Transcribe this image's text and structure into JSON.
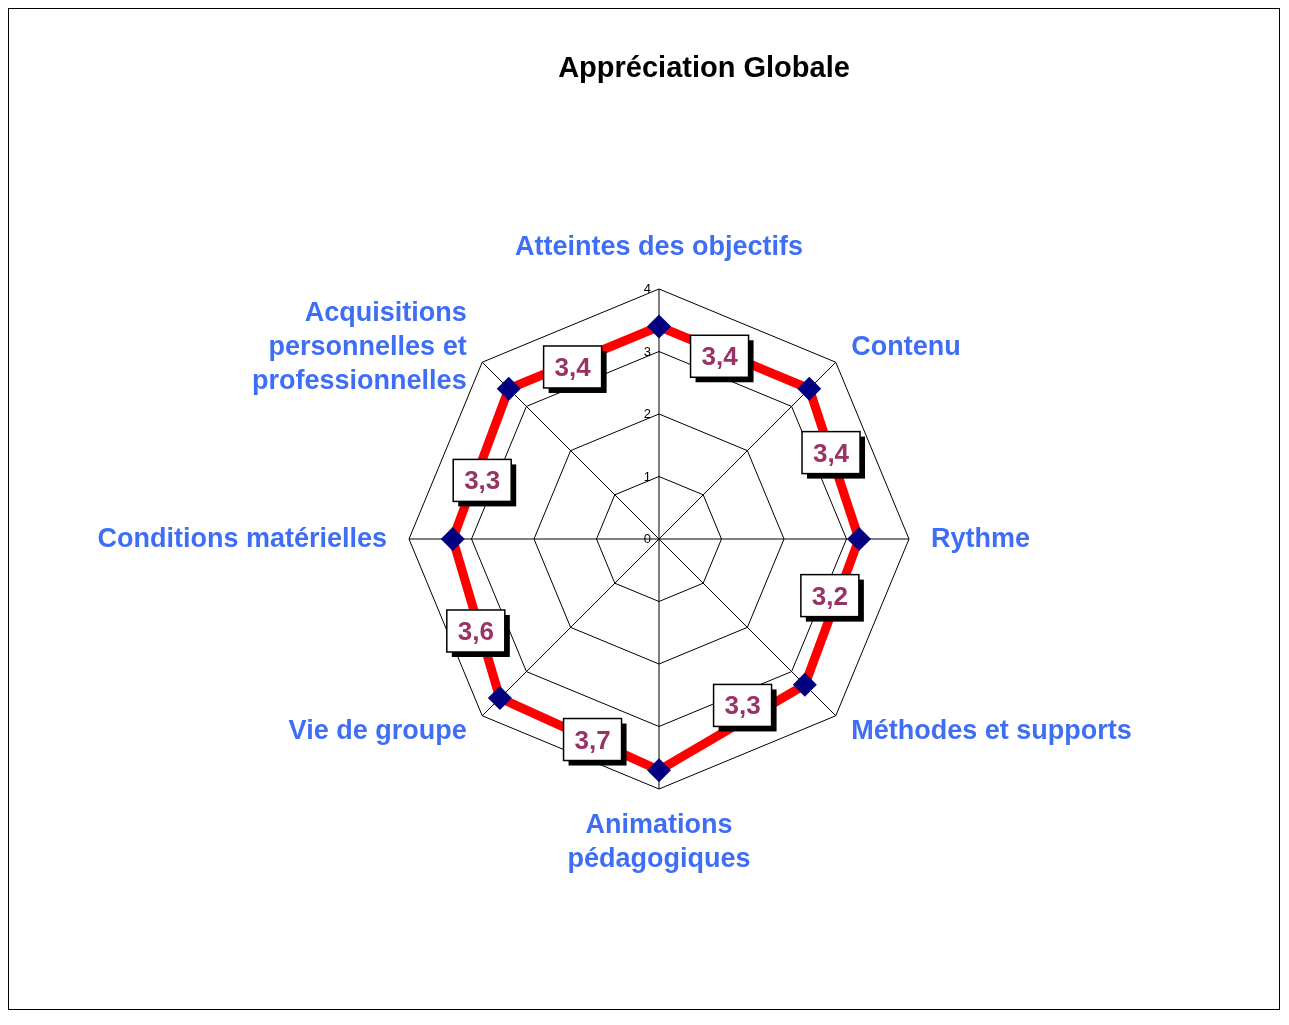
{
  "chart_data": {
    "type": "radar",
    "title": "Appréciation Globale",
    "categories": [
      "Atteintes des objectifs",
      "Contenu",
      "Rythme",
      "Méthodes et supports",
      "Animations pédagogiques",
      "Vie de groupe",
      "Conditions matérielles",
      "Acquisitions personnelles et professionnelles"
    ],
    "series": [
      {
        "color": "#ff0000",
        "values": [
          3.4,
          3.4,
          3.2,
          3.3,
          3.7,
          3.6,
          3.3,
          3.4
        ],
        "value_labels": [
          "3,4",
          "3,4",
          "3,2",
          "3,3",
          "3,7",
          "3,6",
          "3,3",
          "3,4"
        ]
      }
    ],
    "ylim": [
      0,
      4
    ],
    "yticks": [
      0,
      1,
      2,
      3,
      4
    ],
    "grid": true,
    "marker": "diamond",
    "legend": false
  }
}
